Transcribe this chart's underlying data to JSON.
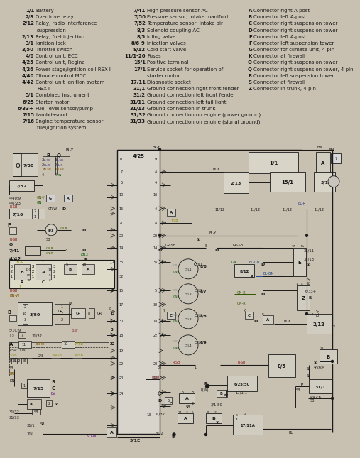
{
  "bg_color": "#c8c0b0",
  "text_color": "#1a1a1a",
  "legend": {
    "col1": [
      [
        "1/1",
        "Battery"
      ],
      [
        "2/8",
        "Overdrive relay"
      ],
      [
        "2/12",
        "Relay, radio interference"
      ],
      [
        "",
        "suppression"
      ],
      [
        "2/13",
        "Relay, fuel injection"
      ],
      [
        "3/1",
        "Ignition lock"
      ],
      [
        "3/50",
        "Throttle switch"
      ],
      [
        "4/6",
        "Control unit, ECC"
      ],
      [
        "4/25",
        "Control unit, Regina"
      ],
      [
        "4/26",
        "Power stage/ignition coil REX-I"
      ],
      [
        "4/40",
        "Climate control MCC"
      ],
      [
        "4/42",
        "Control unit ignition system"
      ],
      [
        "",
        "REX-I"
      ],
      [
        "5/1",
        "Combined instrument"
      ],
      [
        "6/25",
        "Starter motor"
      ],
      [
        "6/33+",
        "Fuel level sensor/pump"
      ],
      [
        "7/15",
        "Lambdasond"
      ],
      [
        "7/16",
        "Engine temperature sensor"
      ],
      [
        "",
        "fuel/ignition system"
      ]
    ],
    "col2": [
      [
        "7/41",
        "High-pressure sensor AC"
      ],
      [
        "7/50",
        "Pressure sensor, intake manifold"
      ],
      [
        "7/52",
        "Temperature sensor, intake air"
      ],
      [
        "8/3",
        "Solenoid coupling AC"
      ],
      [
        "8/5",
        "Idling valve"
      ],
      [
        "8/6-9",
        "Injection valves"
      ],
      [
        "8/12",
        "Cold-start valve"
      ],
      [
        "11/1-26",
        "Fuses"
      ],
      [
        "15/1",
        "Positive terminal"
      ],
      [
        "17/1",
        "Service socket for operation of"
      ],
      [
        "",
        "starter motor"
      ],
      [
        "17/11",
        "Diagnostic socket"
      ],
      [
        "31/1",
        "Ground connection right front fender"
      ],
      [
        "31/2",
        "Ground connection left front fender"
      ],
      [
        "31/11",
        "Ground connection left tail light"
      ],
      [
        "31/13",
        "Ground connection in trunk"
      ],
      [
        "31/32",
        "Ground connection on engine (power ground)"
      ],
      [
        "31/33",
        "Ground connection on engine (signal ground)"
      ]
    ],
    "col3": [
      [
        "A",
        "Connector right A-post"
      ],
      [
        "B",
        "Connector left A-post"
      ],
      [
        "C",
        "Connector right suspension tower"
      ],
      [
        "D",
        "Connector right suspension tower"
      ],
      [
        "E",
        "Connector left A-post"
      ],
      [
        "F",
        "Connector left suspension tower"
      ],
      [
        "G",
        "Connector for climate unit, 4-pin"
      ],
      [
        "K",
        "Connector at firewall"
      ],
      [
        "O",
        "Connector right suspension tower"
      ],
      [
        "Q",
        "Connector right suspension tower, 4-pin"
      ],
      [
        "R",
        "Connector left suspension tower"
      ],
      [
        "S",
        "Connector at firewall"
      ],
      [
        "Z",
        "Connector in trunk, 4-pin"
      ]
    ]
  }
}
